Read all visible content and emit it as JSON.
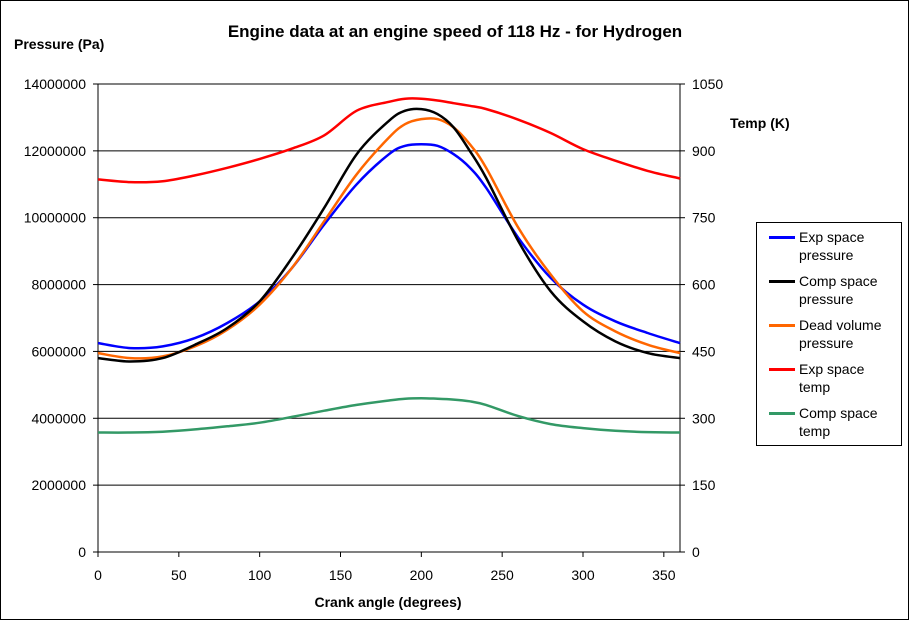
{
  "chart_data": {
    "type": "line",
    "title": "Engine data at an engine speed of 118 Hz - for Hydrogen",
    "xlabel": "Crank angle (degrees)",
    "ylabel": "Pressure (Pa)",
    "y2label": "Temp (K)",
    "xlim": [
      0,
      360
    ],
    "ylim": [
      0,
      14000000
    ],
    "y2lim": [
      0,
      1050
    ],
    "x_ticks": [
      "0",
      "50",
      "100",
      "150",
      "200",
      "250",
      "300",
      "350"
    ],
    "y_ticks": [
      "0",
      "2000000",
      "4000000",
      "6000000",
      "8000000",
      "10000000",
      "12000000",
      "14000000"
    ],
    "y2_ticks": [
      "0",
      "150",
      "300",
      "450",
      "600",
      "750",
      "900",
      "1050"
    ],
    "grid": "horizontal",
    "legend_position": "right",
    "x": [
      0,
      20,
      40,
      60,
      80,
      100,
      120,
      140,
      160,
      180,
      190,
      200,
      210,
      220,
      230,
      240,
      260,
      280,
      300,
      320,
      340,
      360
    ],
    "series": [
      {
        "name": "Exp space pressure",
        "axis": "left",
        "color": "#0000ff",
        "values": [
          6250000,
          6100000,
          6150000,
          6400000,
          6850000,
          7500000,
          8500000,
          9800000,
          11000000,
          11900000,
          12150000,
          12200000,
          12150000,
          11900000,
          11500000,
          10900000,
          9400000,
          8200000,
          7400000,
          6900000,
          6550000,
          6250000
        ]
      },
      {
        "name": "Comp space pressure",
        "axis": "left",
        "color": "#000000",
        "values": [
          5800000,
          5700000,
          5800000,
          6200000,
          6700000,
          7500000,
          8800000,
          10300000,
          11900000,
          12900000,
          13200000,
          13250000,
          13100000,
          12700000,
          12000000,
          11200000,
          9300000,
          7800000,
          6900000,
          6300000,
          5950000,
          5800000
        ]
      },
      {
        "name": "Dead volume pressure",
        "axis": "left",
        "color": "#ff6600",
        "values": [
          5950000,
          5800000,
          5850000,
          6150000,
          6650000,
          7400000,
          8500000,
          9900000,
          11300000,
          12400000,
          12800000,
          12950000,
          12950000,
          12700000,
          12200000,
          11500000,
          9700000,
          8300000,
          7200000,
          6600000,
          6200000,
          5950000
        ]
      },
      {
        "name": "Exp space temp",
        "axis": "right",
        "color": "#ff0000",
        "values": [
          836,
          830,
          832,
          845,
          862,
          882,
          905,
          935,
          990,
          1010,
          1017,
          1017,
          1013,
          1007,
          1001,
          994,
          970,
          940,
          904,
          878,
          855,
          838
        ]
      },
      {
        "name": "Comp space temp",
        "axis": "right",
        "color": "#339966",
        "values": [
          268,
          268,
          270,
          275,
          282,
          290,
          303,
          317,
          330,
          340,
          344,
          345,
          344,
          342,
          338,
          330,
          305,
          287,
          278,
          272,
          269,
          268
        ]
      }
    ]
  }
}
